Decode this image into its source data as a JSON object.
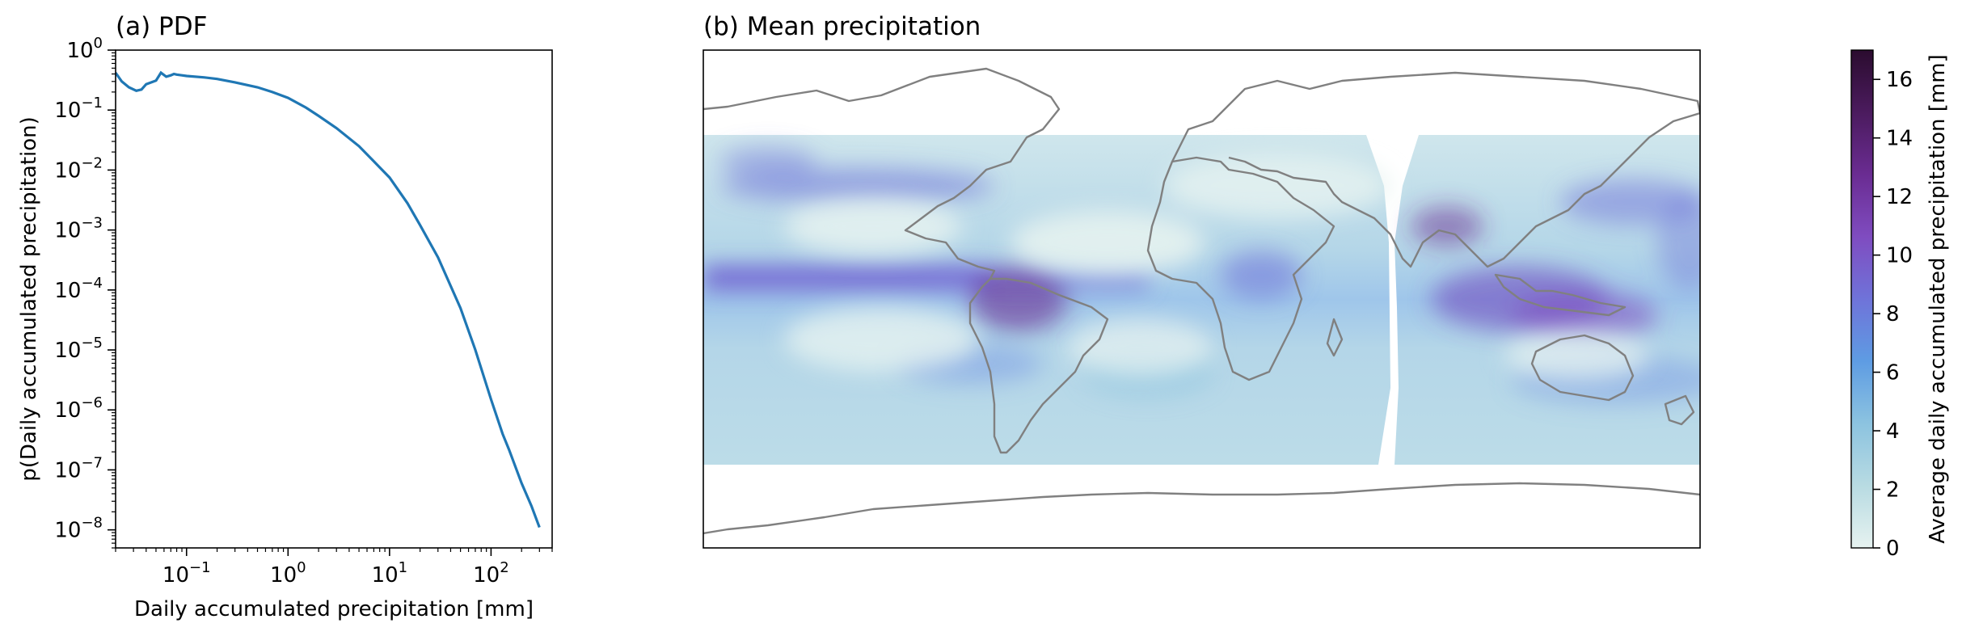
{
  "chart_data": [
    {
      "type": "line",
      "panel_title": "(a) PDF",
      "xlabel": "Daily accumulated precipitation [mm]",
      "ylabel": "p(Daily accumulated precipitation)",
      "x_scale": "log",
      "y_scale": "log",
      "xlim": [
        0.02,
        400
      ],
      "ylim": [
        5e-09,
        1
      ],
      "x_ticks": [
        {
          "value": 0.1,
          "base": "10",
          "exp": "−1"
        },
        {
          "value": 1,
          "base": "10",
          "exp": "0"
        },
        {
          "value": 10,
          "base": "10",
          "exp": "1"
        },
        {
          "value": 100,
          "base": "10",
          "exp": "2"
        }
      ],
      "y_ticks": [
        {
          "value": 1,
          "base": "10",
          "exp": "0"
        },
        {
          "value": 0.1,
          "base": "10",
          "exp": "−1"
        },
        {
          "value": 0.01,
          "base": "10",
          "exp": "−2"
        },
        {
          "value": 0.001,
          "base": "10",
          "exp": "−3"
        },
        {
          "value": 0.0001,
          "base": "10",
          "exp": "−4"
        },
        {
          "value": 1e-05,
          "base": "10",
          "exp": "−5"
        },
        {
          "value": 1e-06,
          "base": "10",
          "exp": "−6"
        },
        {
          "value": 1e-07,
          "base": "10",
          "exp": "−7"
        },
        {
          "value": 1e-08,
          "base": "10",
          "exp": "−8"
        }
      ],
      "grid": false,
      "line_color": "#1f77b4",
      "series": [
        {
          "x": [
            0.02,
            0.023,
            0.027,
            0.032,
            0.036,
            0.04,
            0.045,
            0.05,
            0.056,
            0.063,
            0.07,
            0.075,
            0.08,
            0.09,
            0.1,
            0.15,
            0.2,
            0.3,
            0.5,
            0.7,
            1,
            1.5,
            2,
            3,
            5,
            7,
            10,
            15,
            20,
            30,
            50,
            70,
            100,
            130,
            150,
            200,
            250,
            300
          ],
          "y": [
            0.42,
            0.3,
            0.24,
            0.21,
            0.22,
            0.27,
            0.29,
            0.31,
            0.42,
            0.36,
            0.38,
            0.4,
            0.39,
            0.38,
            0.37,
            0.35,
            0.33,
            0.29,
            0.24,
            0.2,
            0.16,
            0.11,
            0.08,
            0.05,
            0.025,
            0.014,
            0.0075,
            0.0028,
            0.0012,
            0.00035,
            5e-05,
            1e-05,
            1.5e-06,
            4e-07,
            2.2e-07,
            6e-08,
            2.5e-08,
            1.1e-08
          ]
        }
      ]
    },
    {
      "type": "heatmap",
      "panel_title": "(b) Mean precipitation",
      "description_kind": "global map, plate carree",
      "coastline_color": "#808080",
      "colorbar": {
        "label": "Average daily accumulated precipitation [mm]",
        "min": 0,
        "max": 17,
        "ticks": [
          0,
          2,
          4,
          6,
          8,
          10,
          12,
          14,
          16
        ],
        "colors": [
          "#e6f2f0",
          "#b8dbe2",
          "#8cc3e0",
          "#5e9ce3",
          "#6f73d9",
          "#7f4cc0",
          "#6a2c92",
          "#4b1b5e",
          "#2b0c2f"
        ]
      }
    }
  ]
}
